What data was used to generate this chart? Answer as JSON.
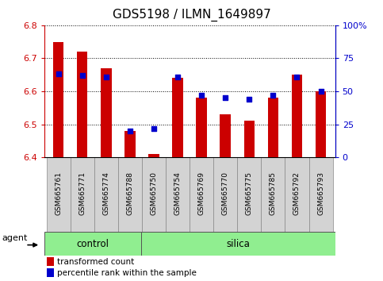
{
  "title": "GDS5198 / ILMN_1649897",
  "samples": [
    "GSM665761",
    "GSM665771",
    "GSM665774",
    "GSM665788",
    "GSM665750",
    "GSM665754",
    "GSM665769",
    "GSM665770",
    "GSM665775",
    "GSM665785",
    "GSM665792",
    "GSM665793"
  ],
  "red_values": [
    6.75,
    6.72,
    6.67,
    6.48,
    6.41,
    6.64,
    6.58,
    6.53,
    6.51,
    6.58,
    6.65,
    6.6
  ],
  "blue_values": [
    63,
    62,
    61,
    20,
    22,
    61,
    47,
    45,
    44,
    47,
    61,
    50
  ],
  "ylim_left": [
    6.4,
    6.8
  ],
  "ylim_right": [
    0,
    100
  ],
  "yticks_left": [
    6.4,
    6.5,
    6.6,
    6.7,
    6.8
  ],
  "yticks_right": [
    0,
    25,
    50,
    75,
    100
  ],
  "ytick_labels_right": [
    "0",
    "25",
    "50",
    "75",
    "100%"
  ],
  "bar_color": "#cc0000",
  "dot_color": "#0000cc",
  "bar_bottom": 6.4,
  "n_control": 4,
  "n_silica": 8,
  "control_color": "#90ee90",
  "silica_color": "#90ee90",
  "agent_label": "agent",
  "control_label": "control",
  "silica_label": "silica",
  "legend_red": "transformed count",
  "legend_blue": "percentile rank within the sample",
  "tick_color_left": "#cc0000",
  "tick_color_right": "#0000cc",
  "label_bg_color": "#d3d3d3",
  "label_border_color": "#888888"
}
